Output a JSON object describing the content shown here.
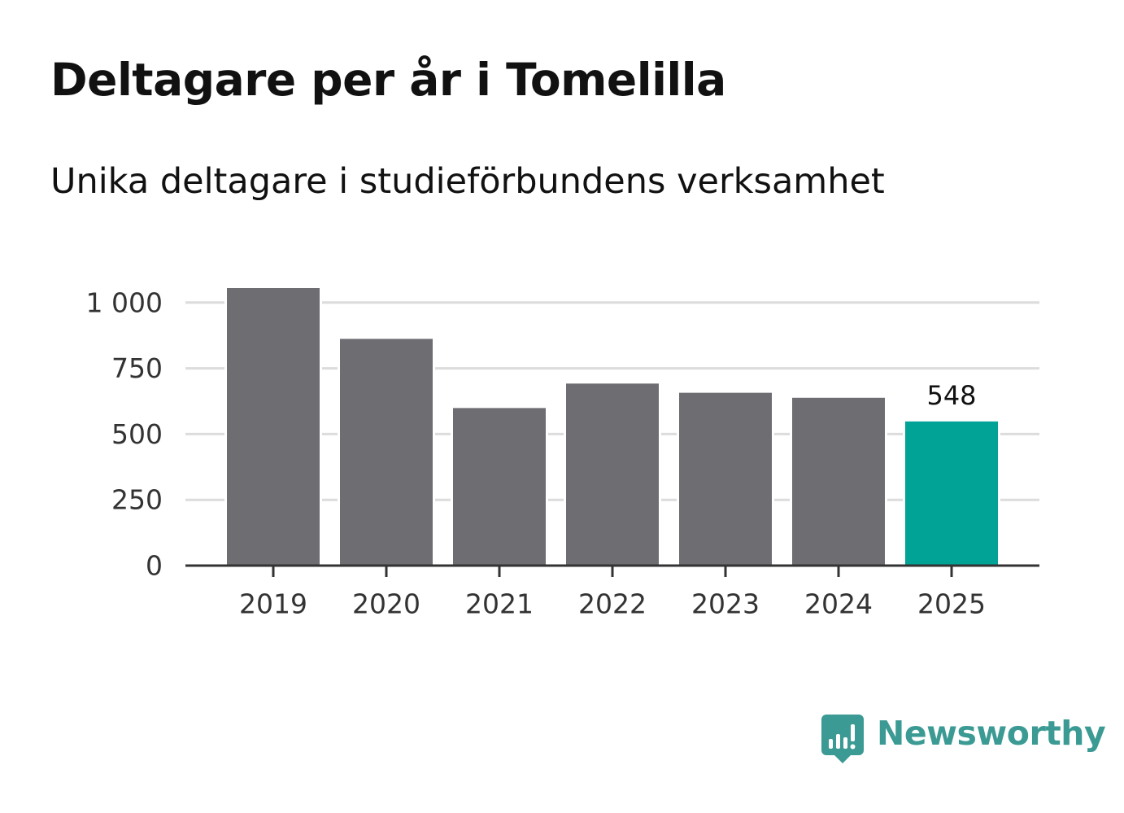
{
  "title": "Deltagare per år i Tomelilla",
  "subtitle": "Unika deltagare i studieförbundens verksamhet",
  "brand": {
    "name": "Newsworthy",
    "color": "#3b9a93"
  },
  "chart_data": {
    "type": "bar",
    "title": "Deltagare per år i Tomelilla",
    "subtitle": "Unika deltagare i studieförbundens verksamhet",
    "xlabel": "",
    "ylabel": "",
    "categories": [
      "2019",
      "2020",
      "2021",
      "2022",
      "2023",
      "2024",
      "2025"
    ],
    "values": [
      1055,
      862,
      599,
      692,
      657,
      638,
      548
    ],
    "highlight_index": 6,
    "data_labels": [
      {
        "category": "2025",
        "text": "548"
      }
    ],
    "yticks": [
      0,
      250,
      500,
      750,
      1000
    ],
    "ytick_labels": [
      "0",
      "250",
      "500",
      "750",
      "1 000"
    ],
    "ylim": [
      0,
      1055
    ],
    "grid": true,
    "colors": {
      "bar": "#6e6d72",
      "highlight": "#00a396",
      "grid": "#dcdcdc",
      "axis": "#333333"
    }
  }
}
